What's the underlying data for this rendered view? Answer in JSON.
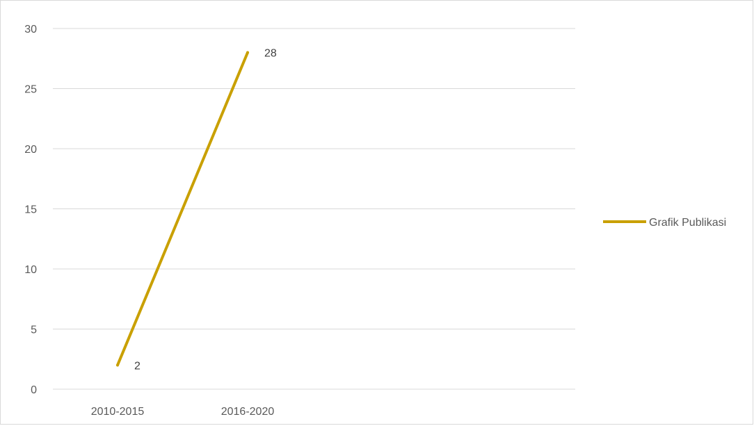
{
  "chart_data": {
    "type": "line",
    "categories": [
      "2010-2015",
      "2016-2020"
    ],
    "series": [
      {
        "name": "Grafik Publikasi",
        "values": [
          2,
          28
        ],
        "color": "#C9A000"
      }
    ],
    "data_labels": [
      "2",
      "28"
    ],
    "ylim": [
      0,
      30
    ],
    "y_ticks": [
      0,
      5,
      10,
      15,
      20,
      25,
      30
    ],
    "grid": true,
    "legend_position": "right",
    "title": "",
    "xlabel": "",
    "ylabel": ""
  }
}
